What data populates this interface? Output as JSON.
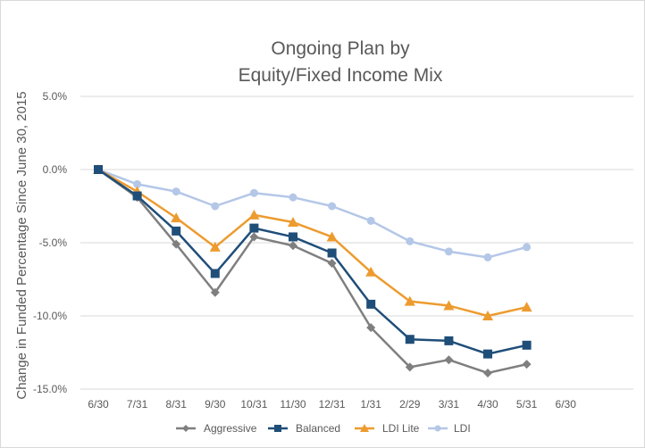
{
  "chart_data": {
    "type": "line",
    "title_line1": "Ongoing Plan by",
    "title_line2": "Equity/Fixed Income Mix",
    "ylabel": "Change in Funded Percentage Since June 30, 2015",
    "xlabel": "",
    "categories": [
      "6/30",
      "7/31",
      "8/31",
      "9/30",
      "10/31",
      "11/30",
      "12/31",
      "1/31",
      "2/29",
      "3/31",
      "4/30",
      "5/31",
      "6/30"
    ],
    "ylim": [
      -15,
      5
    ],
    "yticks": [
      5,
      0,
      -5,
      -10,
      -15
    ],
    "ytick_labels": [
      "5.0%",
      "0.0%",
      "-5.0%",
      "-10.0%",
      "-15.0%"
    ],
    "grid": true,
    "legend_position": "bottom",
    "series": [
      {
        "name": "Aggressive",
        "color": "#7f7f7f",
        "marker": "diamond",
        "values": [
          0,
          -1.9,
          -5.1,
          -8.4,
          -4.6,
          -5.2,
          -6.4,
          -10.8,
          -13.5,
          -13.0,
          -13.9,
          -13.3,
          null
        ]
      },
      {
        "name": "Balanced",
        "color": "#1f4e79",
        "marker": "square",
        "values": [
          0,
          -1.8,
          -4.2,
          -7.1,
          -4.0,
          -4.6,
          -5.7,
          -9.2,
          -11.6,
          -11.7,
          -12.6,
          -12.0,
          null
        ]
      },
      {
        "name": "LDI Lite",
        "color": "#ed9b2f",
        "marker": "triangle",
        "values": [
          0,
          -1.5,
          -3.3,
          -5.3,
          -3.1,
          -3.6,
          -4.6,
          -7.0,
          -9.0,
          -9.3,
          -10.0,
          -9.4,
          null
        ]
      },
      {
        "name": "LDI",
        "color": "#b4c7e7",
        "marker": "circle",
        "values": [
          0,
          -1.0,
          -1.5,
          -2.5,
          -1.6,
          -1.9,
          -2.5,
          -3.5,
          -4.9,
          -5.6,
          -6.0,
          -5.3,
          null
        ]
      }
    ]
  }
}
